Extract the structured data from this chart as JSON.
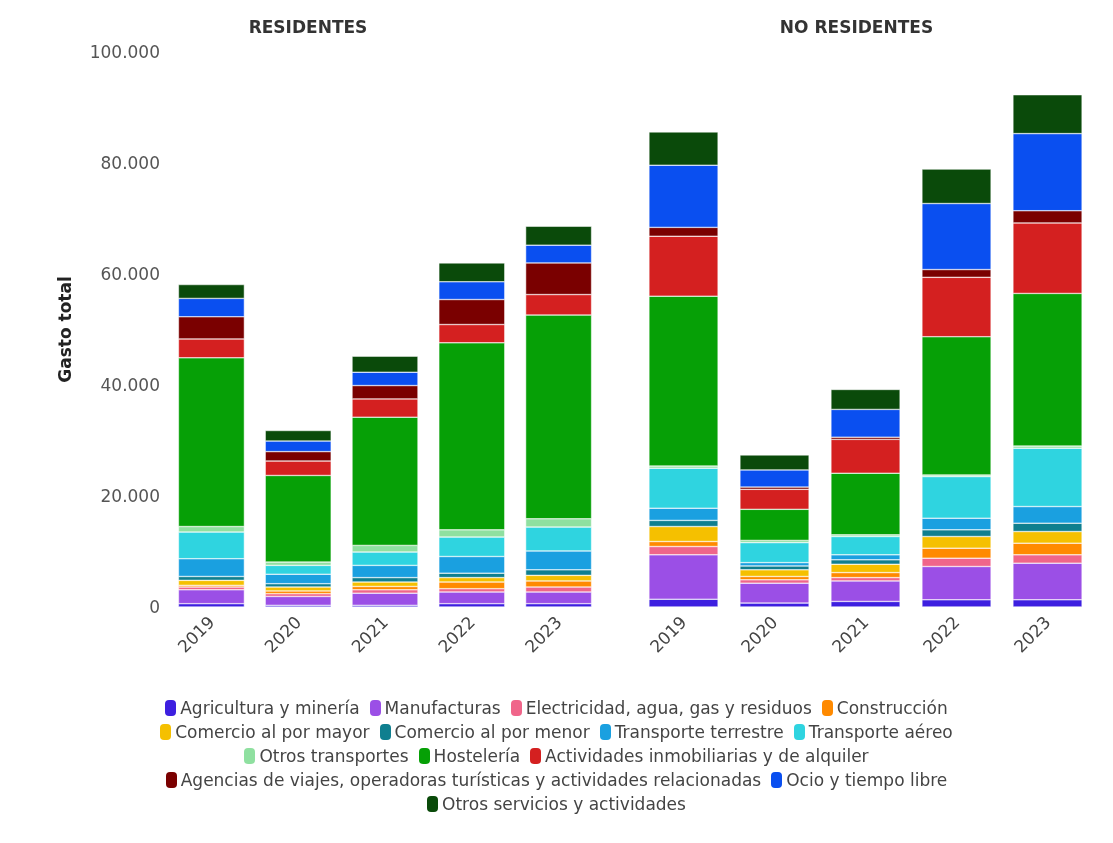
{
  "chart_data": [
    {
      "type": "bar",
      "title": "RESIDENTES",
      "ylabel": "Gasto total",
      "stacked": true,
      "legend": "bottom",
      "grid": false,
      "categories": [
        "2019",
        "2020",
        "2021",
        "2022",
        "2023"
      ],
      "ylim": [
        0,
        100000
      ],
      "yticks": [
        0,
        {
          "value": 20000,
          "label": "20.000"
        },
        {
          "value": 40000,
          "label": "40.000"
        },
        {
          "value": 60000,
          "label": "60.000"
        },
        {
          "value": 80000,
          "label": "80.000"
        },
        {
          "value": 100000,
          "label": "100.000"
        }
      ],
      "series": [
        {
          "name": "Agricultura y minería",
          "color": "#3d1fe0",
          "values": [
            600,
            300,
            300,
            600,
            600
          ]
        },
        {
          "name": "Manufacturas",
          "color": "#9b4fe6",
          "values": [
            2500,
            1600,
            2200,
            2100,
            2100
          ]
        },
        {
          "name": "Electricidad, agua, gas y residuos",
          "color": "#f0658a",
          "values": [
            500,
            500,
            600,
            600,
            900
          ]
        },
        {
          "name": "Construcción",
          "color": "#ff8a00",
          "values": [
            300,
            500,
            600,
            1200,
            1100
          ]
        },
        {
          "name": "Comercio al por mayor",
          "color": "#f5c000",
          "values": [
            900,
            700,
            800,
            800,
            1000
          ]
        },
        {
          "name": "Comercio al por menor",
          "color": "#0f7f8f",
          "values": [
            700,
            600,
            800,
            800,
            1000
          ]
        },
        {
          "name": "Transporte terrestre",
          "color": "#1aa0e0",
          "values": [
            3200,
            1700,
            2200,
            3000,
            3400
          ]
        },
        {
          "name": "Transporte aéreo",
          "color": "#2fd4e0",
          "values": [
            4800,
            1600,
            2400,
            3500,
            4300
          ]
        },
        {
          "name": "Otros transportes",
          "color": "#8fe0a0",
          "values": [
            1000,
            600,
            1200,
            1300,
            1500
          ]
        },
        {
          "name": "Hostelería",
          "color": "#06a006",
          "values": [
            30400,
            15600,
            23100,
            33700,
            36700
          ]
        },
        {
          "name": "Actividades inmobiliarias y de alquiler",
          "color": "#d42020",
          "values": [
            3400,
            2600,
            3300,
            3300,
            3700
          ]
        },
        {
          "name": "Agencias de viajes, operadoras turísticas y actividades relacionadas",
          "color": "#7a0000",
          "values": [
            4000,
            1700,
            2400,
            4500,
            5700
          ]
        },
        {
          "name": "Ocio y tiempo libre",
          "color": "#0a4ff0",
          "values": [
            3300,
            1900,
            2400,
            3200,
            3200
          ]
        },
        {
          "name": "Otros servicios y actividades",
          "color": "#0a4a0a",
          "values": [
            2500,
            1900,
            2900,
            3400,
            3400
          ]
        }
      ]
    },
    {
      "type": "bar",
      "title": "NO RESIDENTES",
      "stacked": true,
      "grid": false,
      "tick_labels": "x",
      "categories": [
        "2019",
        "2020",
        "2021",
        "2022",
        "2023"
      ],
      "ylim": [
        0,
        100000
      ],
      "series": [
        {
          "name": "Agricultura y minería",
          "color": "#3d1fe0",
          "values": [
            1400,
            700,
            1000,
            1300,
            1300
          ]
        },
        {
          "name": "Manufacturas",
          "color": "#9b4fe6",
          "values": [
            8000,
            3600,
            3700,
            6000,
            6600
          ]
        },
        {
          "name": "Electricidad, agua, gas y residuos",
          "color": "#f0658a",
          "values": [
            1500,
            600,
            600,
            1500,
            1500
          ]
        },
        {
          "name": "Construcción",
          "color": "#ff8a00",
          "values": [
            900,
            600,
            900,
            1800,
            2100
          ]
        },
        {
          "name": "Comercio al por mayor",
          "color": "#f5c000",
          "values": [
            2700,
            1200,
            1500,
            2100,
            2100
          ]
        },
        {
          "name": "Comercio al por menor",
          "color": "#0f7f8f",
          "values": [
            1100,
            700,
            800,
            1200,
            1500
          ]
        },
        {
          "name": "Transporte terrestre",
          "color": "#1aa0e0",
          "values": [
            2200,
            600,
            900,
            2100,
            3000
          ]
        },
        {
          "name": "Transporte aéreo",
          "color": "#2fd4e0",
          "values": [
            7200,
            3600,
            3300,
            7500,
            10500
          ]
        },
        {
          "name": "Otros transportes",
          "color": "#8fe0a0",
          "values": [
            400,
            400,
            300,
            300,
            400
          ]
        },
        {
          "name": "Hostelería",
          "color": "#06a006",
          "values": [
            30600,
            5600,
            11100,
            24900,
            27500
          ]
        },
        {
          "name": "Actividades inmobiliarias y de alquiler",
          "color": "#d42020",
          "values": [
            10800,
            3600,
            6100,
            10700,
            12700
          ]
        },
        {
          "name": "Agencias de viajes, operadoras turísticas y actividades relacionadas",
          "color": "#7a0000",
          "values": [
            1600,
            400,
            400,
            1400,
            2200
          ]
        },
        {
          "name": "Ocio y tiempo libre",
          "color": "#0a4ff0",
          "values": [
            11200,
            3100,
            5000,
            11900,
            13900
          ]
        },
        {
          "name": "Otros servicios y actividades",
          "color": "#0a4a0a",
          "values": [
            6000,
            2700,
            3600,
            6200,
            7000
          ]
        }
      ]
    }
  ]
}
